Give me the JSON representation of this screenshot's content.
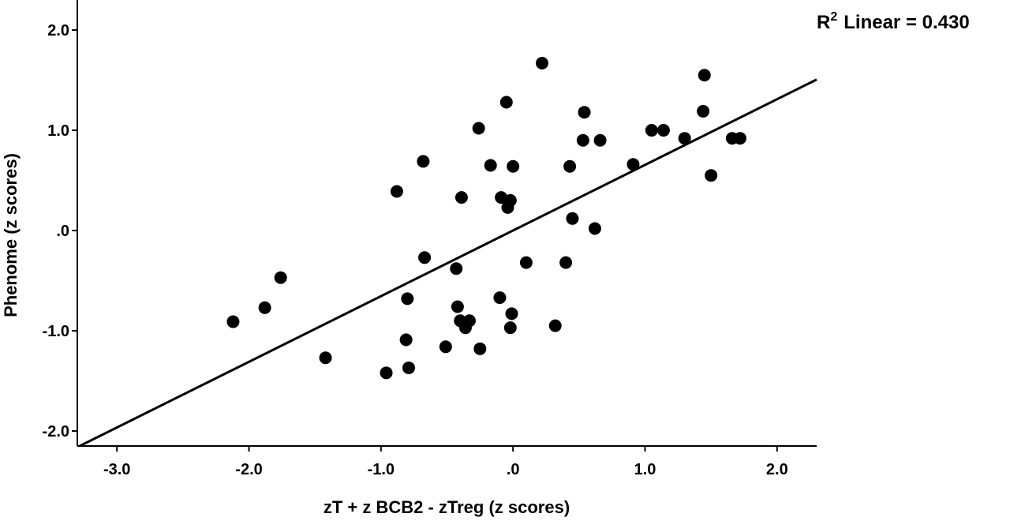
{
  "chart_data": {
    "type": "scatter",
    "title": "",
    "xlabel": "zT + z BCB2 - zTreg (z scores)",
    "ylabel": "Phenome (z scores)",
    "xlim": [
      -3.3,
      2.3
    ],
    "ylim": [
      -2.15,
      2.3
    ],
    "x_ticks": [
      {
        "value": -3.0,
        "label": "-3.0"
      },
      {
        "value": -2.0,
        "label": "-2.0"
      },
      {
        "value": -1.0,
        "label": "-1.0"
      },
      {
        "value": 0.0,
        "label": ".0"
      },
      {
        "value": 1.0,
        "label": "1.0"
      },
      {
        "value": 2.0,
        "label": "2.0"
      }
    ],
    "y_ticks": [
      {
        "value": 2.0,
        "label": "2.0"
      },
      {
        "value": 1.0,
        "label": "1.0"
      },
      {
        "value": 0.0,
        "label": ".0"
      },
      {
        "value": -1.0,
        "label": "-1.0"
      },
      {
        "value": -2.0,
        "label": "-2.0"
      }
    ],
    "grid": false,
    "annotation": {
      "prefix": "R",
      "superscript": "2",
      "suffix": "Linear = 0.430",
      "placement": "top-right"
    },
    "fit_line": {
      "slope": 0.655,
      "intercept": 0.0
    },
    "points": [
      {
        "x": -2.12,
        "y": -0.91
      },
      {
        "x": -1.88,
        "y": -0.77
      },
      {
        "x": -1.76,
        "y": -0.47
      },
      {
        "x": -1.42,
        "y": -1.27
      },
      {
        "x": -0.96,
        "y": -1.42
      },
      {
        "x": -0.88,
        "y": 0.39
      },
      {
        "x": -0.81,
        "y": -1.09
      },
      {
        "x": -0.8,
        "y": -0.68
      },
      {
        "x": -0.79,
        "y": -1.37
      },
      {
        "x": -0.68,
        "y": 0.69
      },
      {
        "x": -0.67,
        "y": -0.27
      },
      {
        "x": -0.51,
        "y": -1.16
      },
      {
        "x": -0.43,
        "y": -0.38
      },
      {
        "x": -0.42,
        "y": -0.76
      },
      {
        "x": -0.4,
        "y": -0.9
      },
      {
        "x": -0.39,
        "y": 0.33
      },
      {
        "x": -0.36,
        "y": -0.97
      },
      {
        "x": -0.33,
        "y": -0.9
      },
      {
        "x": -0.26,
        "y": 1.02
      },
      {
        "x": -0.25,
        "y": -1.18
      },
      {
        "x": -0.17,
        "y": 0.65
      },
      {
        "x": -0.1,
        "y": -0.67
      },
      {
        "x": -0.09,
        "y": 0.33
      },
      {
        "x": -0.05,
        "y": 1.28
      },
      {
        "x": -0.04,
        "y": 0.23
      },
      {
        "x": -0.02,
        "y": 0.3
      },
      {
        "x": -0.02,
        "y": -0.97
      },
      {
        "x": -0.01,
        "y": -0.83
      },
      {
        "x": 0.0,
        "y": 0.64
      },
      {
        "x": 0.1,
        "y": -0.32
      },
      {
        "x": 0.22,
        "y": 1.67
      },
      {
        "x": 0.32,
        "y": -0.95
      },
      {
        "x": 0.4,
        "y": -0.32
      },
      {
        "x": 0.43,
        "y": 0.64
      },
      {
        "x": 0.45,
        "y": 0.12
      },
      {
        "x": 0.53,
        "y": 0.9
      },
      {
        "x": 0.54,
        "y": 1.18
      },
      {
        "x": 0.62,
        "y": 0.02
      },
      {
        "x": 0.66,
        "y": 0.9
      },
      {
        "x": 0.91,
        "y": 0.66
      },
      {
        "x": 1.05,
        "y": 1.0
      },
      {
        "x": 1.14,
        "y": 1.0
      },
      {
        "x": 1.3,
        "y": 0.92
      },
      {
        "x": 1.44,
        "y": 1.19
      },
      {
        "x": 1.45,
        "y": 1.55
      },
      {
        "x": 1.5,
        "y": 0.55
      },
      {
        "x": 1.66,
        "y": 0.92
      },
      {
        "x": 1.72,
        "y": 0.92
      }
    ]
  }
}
